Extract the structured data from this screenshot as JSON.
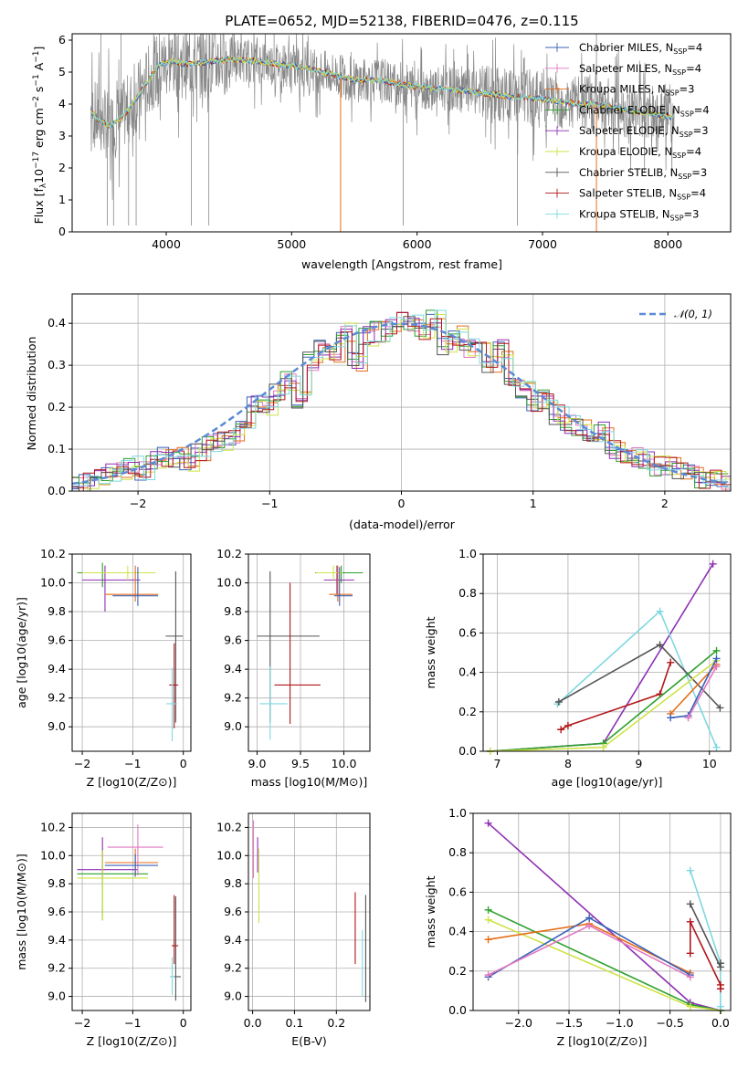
{
  "colors": {
    "chabrier_miles": "#3a62b8",
    "salpeter_miles": "#e377c2",
    "kroupa_miles": "#e66e1a",
    "chabrier_elodie": "#2ca02c",
    "salpeter_elodie": "#8e2fb3",
    "kroupa_elodie": "#cfe346",
    "chabrier_stelib": "#555555",
    "salpeter_stelib": "#b2161a",
    "kroupa_stelib": "#7fd8e0",
    "model_gray": "#888888",
    "gauss": "#5b8ad6"
  },
  "chart_data": [
    {
      "id": "spectrum",
      "type": "line",
      "title": "PLATE=0652, MJD=52138, FIBERID=0476, z=0.115",
      "xlabel": "wavelength [Angstrom, rest frame]",
      "ylabel": "Flux [fλ10⁻¹⁷ erg cm⁻² s⁻¹ A⁻¹]",
      "xlim": [
        3250,
        8500
      ],
      "ylim": [
        0,
        6.2
      ],
      "xticks": [
        "4000",
        "5000",
        "6000",
        "7000",
        "8000"
      ],
      "yticks": [
        "0",
        "1",
        "2",
        "3",
        "4",
        "5",
        "6"
      ],
      "continuum": {
        "x": [
          3400,
          3450,
          3550,
          3650,
          3750,
          3850,
          3950,
          4050,
          4150,
          4300,
          4500,
          4700,
          4900,
          5100,
          5300,
          5500,
          5700,
          5900,
          6100,
          6300,
          6500,
          6700,
          6900,
          7100,
          7300,
          7500,
          7700,
          7900,
          8050
        ],
        "y": [
          3.8,
          3.55,
          3.3,
          3.6,
          4.1,
          4.7,
          5.25,
          5.35,
          5.25,
          5.3,
          5.4,
          5.35,
          5.25,
          5.15,
          4.95,
          4.75,
          4.75,
          4.6,
          4.5,
          4.45,
          4.35,
          4.25,
          4.2,
          4.1,
          4.0,
          3.95,
          3.8,
          3.7,
          3.55
        ]
      },
      "legend": [
        {
          "label": "Chabrier MILES, N",
          "sub": "SSP",
          "suffix": "=4",
          "color": "#3a62b8",
          "marker": "line"
        },
        {
          "label": "Salpeter MILES, N",
          "sub": "SSP",
          "suffix": "=4",
          "color": "#e377c2",
          "marker": "line"
        },
        {
          "label": "Kroupa MILES, N",
          "sub": "SSP",
          "suffix": "=3",
          "color": "#e66e1a",
          "marker": "line"
        },
        {
          "label": "Chabrier ELODIE, N",
          "sub": "SSP",
          "suffix": "=4",
          "color": "#2ca02c",
          "marker": "line"
        },
        {
          "label": "Salpeter ELODIE, N",
          "sub": "SSP",
          "suffix": "=3",
          "color": "#8e2fb3",
          "marker": "line"
        },
        {
          "label": "Kroupa ELODIE, N",
          "sub": "SSP",
          "suffix": "=4",
          "color": "#cfe346",
          "marker": "line"
        },
        {
          "label": "Chabrier STELIB, N",
          "sub": "SSP",
          "suffix": "=3",
          "color": "#555555",
          "marker": "line"
        },
        {
          "label": "Salpeter STELIB, N",
          "sub": "SSP",
          "suffix": "=4",
          "color": "#b2161a",
          "marker": "line"
        },
        {
          "label": "Kroupa STELIB, N",
          "sub": "SSP",
          "suffix": "=3",
          "color": "#7fd8e0",
          "marker": "line"
        }
      ]
    },
    {
      "id": "residuals",
      "type": "histogram",
      "xlabel": "(data-model)/error",
      "ylabel": "Normed distribution",
      "xlim": [
        -2.5,
        2.5
      ],
      "ylim": [
        0,
        0.47
      ],
      "xticks": [
        "−2",
        "−1",
        "0",
        "1",
        "2"
      ],
      "yticks": [
        "0.0",
        "0.1",
        "0.2",
        "0.3",
        "0.4"
      ],
      "bin_width": 0.1,
      "bins_start": -2.5,
      "gaussian_label": "𝒩(0, 1)",
      "series_values": [
        0.01,
        0.02,
        0.03,
        0.04,
        0.05,
        0.06,
        0.05,
        0.07,
        0.08,
        0.08,
        0.07,
        0.09,
        0.11,
        0.12,
        0.13,
        0.16,
        0.21,
        0.2,
        0.24,
        0.26,
        0.22,
        0.31,
        0.34,
        0.33,
        0.38,
        0.31,
        0.37,
        0.38,
        0.39,
        0.41,
        0.4,
        0.38,
        0.41,
        0.35,
        0.37,
        0.34,
        0.33,
        0.3,
        0.34,
        0.27,
        0.24,
        0.21,
        0.22,
        0.18,
        0.16,
        0.15,
        0.14,
        0.14,
        0.1,
        0.08,
        0.08,
        0.07,
        0.06,
        0.06,
        0.05,
        0.04,
        0.03,
        0.03,
        0.02
      ]
    },
    {
      "id": "age_vs_Z",
      "type": "errorbar",
      "xlabel": "Z [log10(Z/Z⊙)]",
      "ylabel": "age  [log10(age/yr)]",
      "xlim": [
        -2.2,
        0.15
      ],
      "ylim": [
        8.83,
        10.2
      ],
      "xticks": [
        "−2",
        "−1",
        "0"
      ],
      "yticks": [
        "9.0",
        "9.2",
        "9.4",
        "9.6",
        "9.8",
        "10.0",
        "10.2"
      ],
      "points": [
        {
          "x": -1.6,
          "y": 10.07,
          "xerr": [
            0.5,
            0.92
          ],
          "yerr": [
            0.1,
            0.07
          ],
          "color": "#2ca02c"
        },
        {
          "x": -1.55,
          "y": 10.02,
          "xerr": [
            0.45,
            0.7
          ],
          "yerr": [
            0.22,
            0.1
          ],
          "color": "#8e2fb3"
        },
        {
          "x": -1.1,
          "y": 10.07,
          "xerr": [
            0.9,
            0.55
          ],
          "yerr": [
            0.05,
            0.05
          ],
          "color": "#cfe346"
        },
        {
          "x": -0.95,
          "y": 9.92,
          "xerr": [
            0.6,
            0.45
          ],
          "yerr": [
            0.05,
            0.2
          ],
          "color": "#e66e1a"
        },
        {
          "x": -0.9,
          "y": 9.91,
          "xerr": [
            0.5,
            0.4
          ],
          "yerr": [
            0.07,
            0.2
          ],
          "color": "#3a62b8"
        },
        {
          "x": -0.15,
          "y": 9.63,
          "xerr": [
            0.2,
            0.14
          ],
          "yerr": [
            0.6,
            0.45
          ],
          "color": "#555555"
        },
        {
          "x": -0.18,
          "y": 9.29,
          "xerr": [
            0.1,
            0.08
          ],
          "yerr": [
            0.3,
            0.29
          ],
          "color": "#b2161a"
        },
        {
          "x": -0.22,
          "y": 9.16,
          "xerr": [
            0.12,
            0.1
          ],
          "yerr": [
            0.26,
            0.25
          ],
          "color": "#7fd8e0"
        }
      ]
    },
    {
      "id": "age_vs_mass",
      "type": "errorbar",
      "xlabel": "mass [log10(M/M⊙)]",
      "ylabel": "",
      "xlim": [
        8.9,
        10.3
      ],
      "ylim": [
        8.83,
        10.2
      ],
      "xticks": [
        "9.0",
        "9.5",
        "10.0"
      ],
      "yticks": [
        "9.0",
        "9.2",
        "9.4",
        "9.6",
        "9.8",
        "10.0",
        "10.2"
      ],
      "points": [
        {
          "x": 9.97,
          "y": 10.07,
          "xerr": [
            0.3,
            0.25
          ],
          "yerr": [
            0.07,
            0.05
          ],
          "color": "#2ca02c"
        },
        {
          "x": 9.92,
          "y": 10.02,
          "xerr": [
            0.15,
            0.2
          ],
          "yerr": [
            0.1,
            0.1
          ],
          "color": "#8e2fb3"
        },
        {
          "x": 9.88,
          "y": 10.07,
          "xerr": [
            0.2,
            0.1
          ],
          "yerr": [
            0.05,
            0.05
          ],
          "color": "#cfe346"
        },
        {
          "x": 9.93,
          "y": 9.92,
          "xerr": [
            0.1,
            0.17
          ],
          "yerr": [
            0.05,
            0.2
          ],
          "color": "#e66e1a"
        },
        {
          "x": 9.95,
          "y": 9.91,
          "xerr": [
            0.06,
            0.15
          ],
          "yerr": [
            0.07,
            0.2
          ],
          "color": "#3a62b8"
        },
        {
          "x": 9.15,
          "y": 9.63,
          "xerr": [
            0.15,
            0.57
          ],
          "yerr": [
            0.6,
            0.45
          ],
          "color": "#555555"
        },
        {
          "x": 9.38,
          "y": 9.29,
          "xerr": [
            0.18,
            0.35
          ],
          "yerr": [
            0.27,
            0.71
          ],
          "color": "#b2161a"
        },
        {
          "x": 9.15,
          "y": 9.16,
          "xerr": [
            0.12,
            0.2
          ],
          "yerr": [
            0.25,
            0.26
          ],
          "color": "#7fd8e0"
        }
      ]
    },
    {
      "id": "weight_vs_age",
      "type": "line",
      "xlabel": "age  [log10(age/yr)]",
      "ylabel": "mass weight",
      "xlim": [
        6.8,
        10.3
      ],
      "ylim": [
        0,
        1.0
      ],
      "xticks": [
        "7",
        "8",
        "9",
        "10"
      ],
      "yticks": [
        "0.0",
        "0.2",
        "0.4",
        "0.6",
        "0.8",
        "1.0"
      ],
      "series": [
        {
          "color": "#8e2fb3",
          "x": [
            6.9,
            8.5,
            10.05
          ],
          "y": [
            0.0,
            0.04,
            0.95
          ]
        },
        {
          "color": "#7fd8e0",
          "x": [
            7.85,
            9.3,
            10.1
          ],
          "y": [
            0.24,
            0.71,
            0.02
          ]
        },
        {
          "color": "#555555",
          "x": [
            7.87,
            9.3,
            10.15
          ],
          "y": [
            0.25,
            0.54,
            0.22
          ]
        },
        {
          "color": "#b2161a",
          "x": [
            7.9,
            8.0,
            9.3,
            9.45
          ],
          "y": [
            0.11,
            0.13,
            0.29,
            0.45
          ]
        },
        {
          "color": "#2ca02c",
          "x": [
            6.9,
            8.5,
            10.1
          ],
          "y": [
            0.0,
            0.04,
            0.51
          ]
        },
        {
          "color": "#cfe346",
          "x": [
            6.9,
            8.5,
            10.1
          ],
          "y": [
            0.0,
            0.02,
            0.46
          ]
        },
        {
          "color": "#e66e1a",
          "x": [
            9.45,
            10.1
          ],
          "y": [
            0.19,
            0.44
          ]
        },
        {
          "color": "#3a62b8",
          "x": [
            9.45,
            9.7,
            10.1
          ],
          "y": [
            0.17,
            0.18,
            0.47
          ]
        },
        {
          "color": "#e377c2",
          "x": [
            9.7,
            10.1
          ],
          "y": [
            0.17,
            0.43
          ]
        }
      ]
    },
    {
      "id": "mass_vs_Z",
      "type": "errorbar",
      "xlabel": "Z [log10(Z/Z⊙)]",
      "ylabel": "mass [log10(M/M⊙)]",
      "xlim": [
        -2.2,
        0.15
      ],
      "ylim": [
        8.9,
        10.3
      ],
      "xticks": [
        "−2",
        "−1",
        "0"
      ],
      "yticks": [
        "9.0",
        "9.2",
        "9.4",
        "9.6",
        "9.8",
        "10.0",
        "10.2"
      ],
      "points": [
        {
          "x": -1.6,
          "y": 9.87,
          "xerr": [
            0.5,
            0.9
          ],
          "yerr": [
            0.33,
            0.18
          ],
          "color": "#2ca02c"
        },
        {
          "x": -1.6,
          "y": 9.9,
          "xerr": [
            0.5,
            0.7
          ],
          "yerr": [
            0.07,
            0.23
          ],
          "color": "#8e2fb3"
        },
        {
          "x": -1.6,
          "y": 9.84,
          "xerr": [
            0.5,
            0.9
          ],
          "yerr": [
            0.3,
            0.2
          ],
          "color": "#cfe346"
        },
        {
          "x": -0.95,
          "y": 9.95,
          "xerr": [
            0.6,
            0.45
          ],
          "yerr": [
            0.1,
            0.1
          ],
          "color": "#e66e1a"
        },
        {
          "x": -0.9,
          "y": 10.06,
          "xerr": [
            0.6,
            0.5
          ],
          "yerr": [
            0.2,
            0.16
          ],
          "color": "#e377c2"
        },
        {
          "x": -0.95,
          "y": 9.93,
          "xerr": [
            0.6,
            0.45
          ],
          "yerr": [
            0.08,
            0.08
          ],
          "color": "#3a62b8"
        },
        {
          "x": -0.15,
          "y": 9.14,
          "xerr": [
            0.1,
            0.1
          ],
          "yerr": [
            0.17,
            0.57
          ],
          "color": "#555555"
        },
        {
          "x": -0.18,
          "y": 9.36,
          "xerr": [
            0.05,
            0.08
          ],
          "yerr": [
            0.13,
            0.36
          ],
          "color": "#b2161a"
        },
        {
          "x": -0.22,
          "y": 9.14,
          "xerr": [
            0.05,
            0.05
          ],
          "yerr": [
            0.13,
            0.14
          ],
          "color": "#7fd8e0"
        }
      ]
    },
    {
      "id": "mass_vs_ebv",
      "type": "errorbar",
      "xlabel": "E(B-V)",
      "ylabel": "",
      "xlim": [
        -0.01,
        0.28
      ],
      "ylim": [
        8.9,
        10.3
      ],
      "xticks": [
        "0.0",
        "0.1",
        "0.2"
      ],
      "yticks": [
        "9.0",
        "9.2",
        "9.4",
        "9.6",
        "9.8",
        "10.0",
        "10.2"
      ],
      "points": [
        {
          "x": 0.002,
          "y": 10.0,
          "xerr": [
            0,
            0
          ],
          "yerr": [
            0.16,
            0.25
          ],
          "color": "#e377c2"
        },
        {
          "x": 0.012,
          "y": 9.96,
          "xerr": [
            0,
            0
          ],
          "yerr": [
            0.08,
            0.17
          ],
          "color": "#8e2fb3"
        },
        {
          "x": 0.015,
          "y": 9.85,
          "xerr": [
            0,
            0
          ],
          "yerr": [
            0.33,
            0.2
          ],
          "color": "#cfe346"
        },
        {
          "x": 0.245,
          "y": 9.5,
          "xerr": [
            0,
            0
          ],
          "yerr": [
            0.27,
            0.24
          ],
          "color": "#b2161a"
        },
        {
          "x": 0.262,
          "y": 9.2,
          "xerr": [
            0,
            0
          ],
          "yerr": [
            0.2,
            0.27
          ],
          "color": "#7fd8e0"
        },
        {
          "x": 0.27,
          "y": 9.3,
          "xerr": [
            0,
            0
          ],
          "yerr": [
            0.34,
            0.42
          ],
          "color": "#555555"
        }
      ]
    },
    {
      "id": "weight_vs_Z",
      "type": "line",
      "xlabel": "Z [log10(Z/Z⊙)]",
      "ylabel": "mass weight",
      "xlim": [
        -2.45,
        0.1
      ],
      "ylim": [
        0,
        1.0
      ],
      "xticks": [
        "−2.0",
        "−1.5",
        "−1.0",
        "−0.5",
        "0.0"
      ],
      "yticks": [
        "0.0",
        "0.2",
        "0.4",
        "0.6",
        "0.8",
        "1.0"
      ],
      "series": [
        {
          "color": "#8e2fb3",
          "x": [
            -2.3,
            -0.3,
            0.0
          ],
          "y": [
            0.95,
            0.04,
            0.0
          ]
        },
        {
          "color": "#2ca02c",
          "x": [
            -2.3,
            -0.3,
            0.0
          ],
          "y": [
            0.51,
            0.03,
            0.0
          ]
        },
        {
          "color": "#cfe346",
          "x": [
            -2.3,
            -0.3,
            0.0
          ],
          "y": [
            0.46,
            0.02,
            0.0
          ]
        },
        {
          "color": "#e66e1a",
          "x": [
            -2.3,
            -1.3,
            -0.3
          ],
          "y": [
            0.36,
            0.44,
            0.19
          ]
        },
        {
          "color": "#3a62b8",
          "x": [
            -2.3,
            -1.3,
            -0.3
          ],
          "y": [
            0.17,
            0.47,
            0.18
          ]
        },
        {
          "color": "#e377c2",
          "x": [
            -2.3,
            -1.3,
            -0.3
          ],
          "y": [
            0.18,
            0.43,
            0.17
          ]
        },
        {
          "color": "#7fd8e0",
          "x": [
            -0.3,
            0.0,
            0.0
          ],
          "y": [
            0.71,
            0.24,
            0.02
          ]
        },
        {
          "color": "#555555",
          "x": [
            -0.3,
            0.0,
            0.0
          ],
          "y": [
            0.54,
            0.22,
            0.24
          ]
        },
        {
          "color": "#b2161a",
          "x": [
            -0.3,
            -0.3,
            0.0,
            0.0
          ],
          "y": [
            0.29,
            0.45,
            0.13,
            0.11
          ]
        }
      ]
    }
  ]
}
